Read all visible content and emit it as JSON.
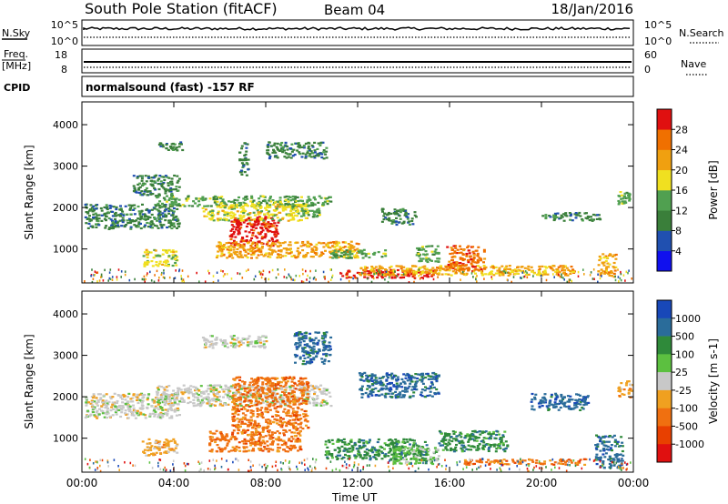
{
  "header": {
    "title": "South Pole Station (fitACF)",
    "beam": "Beam 04",
    "date": "18/Jan/2016"
  },
  "nsky_panel": {
    "left_label": "N.Sky",
    "right_label": "N.Search",
    "left_ticks": [
      "10^5",
      "10^0"
    ],
    "right_ticks": [
      "10^5",
      "10^0"
    ]
  },
  "freq_panel": {
    "left_label_1": "Freq.",
    "left_label_2": "[MHz]",
    "right_label": "Nave",
    "left_ticks": [
      "18",
      "8"
    ],
    "right_ticks": [
      "60",
      "0"
    ]
  },
  "cpid": {
    "label": "CPID",
    "text": "normalsound (fast) -157 RF"
  },
  "chart_data": [
    {
      "type": "heatmap",
      "quantity": "Power",
      "ylabel": "Slant Range [km]",
      "ylim": [
        180,
        4550
      ],
      "yticks": [
        1000,
        2000,
        3000,
        4000
      ],
      "xlim_hours": [
        0,
        24
      ],
      "colorbar": {
        "label": "Power [dB]",
        "ticks": [
          "4",
          "8",
          "12",
          "16",
          "20",
          "24",
          "28"
        ],
        "colors": [
          "#1010ee",
          "#2050b0",
          "#3a7f3a",
          "#50a050",
          "#f0e020",
          "#f0a010",
          "#f07000",
          "#e01010"
        ]
      },
      "regions": [
        {
          "t": [
            0.1,
            4.2
          ],
          "r": [
            1500,
            2100
          ],
          "level": 1
        },
        {
          "t": [
            2.2,
            4.2
          ],
          "r": [
            2300,
            2800
          ],
          "level": 1
        },
        {
          "t": [
            2.6,
            4.1
          ],
          "r": [
            600,
            1000
          ],
          "level": 3
        },
        {
          "t": [
            3.3,
            4.4
          ],
          "r": [
            3400,
            3600
          ],
          "level": 1
        },
        {
          "t": [
            3.2,
            10.8
          ],
          "r": [
            2050,
            2300
          ],
          "level": 2
        },
        {
          "t": [
            5.2,
            7.8
          ],
          "r": [
            1700,
            2100
          ],
          "level": 3
        },
        {
          "t": [
            6.4,
            8.5
          ],
          "r": [
            1100,
            1800
          ],
          "level": 6
        },
        {
          "t": [
            6.8,
            7.2
          ],
          "r": [
            2800,
            3600
          ],
          "level": 1
        },
        {
          "t": [
            7.6,
            9.8
          ],
          "r": [
            1700,
            2100
          ],
          "level": 3
        },
        {
          "t": [
            8.0,
            10.6
          ],
          "r": [
            3200,
            3600
          ],
          "level": 1
        },
        {
          "t": [
            5.8,
            12.0
          ],
          "r": [
            800,
            1200
          ],
          "level": 4
        },
        {
          "t": [
            9.5,
            10.3
          ],
          "r": [
            1800,
            2000
          ],
          "level": 2
        },
        {
          "t": [
            10.8,
            13.2
          ],
          "r": [
            800,
            1000
          ],
          "level": 2
        },
        {
          "t": [
            11.2,
            15.3
          ],
          "r": [
            320,
            520
          ],
          "level": 6
        },
        {
          "t": [
            12.0,
            21.5
          ],
          "r": [
            380,
            620
          ],
          "level": 4
        },
        {
          "t": [
            13.0,
            14.5
          ],
          "r": [
            1600,
            2000
          ],
          "level": 1
        },
        {
          "t": [
            14.5,
            15.5
          ],
          "r": [
            700,
            1100
          ],
          "level": 2
        },
        {
          "t": [
            15.8,
            17.5
          ],
          "r": [
            500,
            1100
          ],
          "level": 5
        },
        {
          "t": [
            17.5,
            20.2
          ],
          "r": [
            400,
            500
          ],
          "level": 3
        },
        {
          "t": [
            20.0,
            22.5
          ],
          "r": [
            1700,
            1900
          ],
          "level": 1
        },
        {
          "t": [
            22.4,
            23.2
          ],
          "r": [
            350,
            900
          ],
          "level": 4
        },
        {
          "t": [
            23.3,
            23.8
          ],
          "r": [
            2100,
            2400
          ],
          "level": 2
        }
      ]
    },
    {
      "type": "heatmap",
      "quantity": "Velocity",
      "ylabel": "Slant Range [km]",
      "ylim": [
        180,
        4550
      ],
      "yticks": [
        1000,
        2000,
        3000,
        4000
      ],
      "xlim_hours": [
        0,
        24
      ],
      "xticks": [
        "00:00",
        "04:00",
        "08:00",
        "12:00",
        "16:00",
        "20:00",
        "00:00"
      ],
      "xlabel": "Time UT",
      "colorbar": {
        "label": "Velocity [m s-1]",
        "ticks": [
          "1000",
          "500",
          "100",
          "25",
          "-25",
          "-100",
          "-500",
          "-1000"
        ],
        "colors": [
          "#1848b8",
          "#2a6c9a",
          "#2f8a3a",
          "#5cc040",
          "#c8c8c8",
          "#f0a020",
          "#f07010",
          "#e84000",
          "#e01010"
        ]
      },
      "regions": [
        {
          "t": [
            0.1,
            4.2
          ],
          "r": [
            1500,
            2100
          ],
          "level": 4
        },
        {
          "t": [
            2.6,
            4.1
          ],
          "r": [
            600,
            1000
          ],
          "level": 5
        },
        {
          "t": [
            3.2,
            10.8
          ],
          "r": [
            1800,
            2300
          ],
          "level": 4
        },
        {
          "t": [
            5.2,
            8.0
          ],
          "r": [
            3200,
            3500
          ],
          "level": 4
        },
        {
          "t": [
            5.5,
            9.5
          ],
          "r": [
            700,
            1200
          ],
          "level": 6
        },
        {
          "t": [
            6.5,
            9.8
          ],
          "r": [
            1200,
            2500
          ],
          "level": 6
        },
        {
          "t": [
            9.2,
            10.8
          ],
          "r": [
            2800,
            3600
          ],
          "level": 1
        },
        {
          "t": [
            10.5,
            15.0
          ],
          "r": [
            500,
            1000
          ],
          "level": 2
        },
        {
          "t": [
            12.0,
            15.5
          ],
          "r": [
            2000,
            2600
          ],
          "level": 1
        },
        {
          "t": [
            13.5,
            15.5
          ],
          "r": [
            400,
            800
          ],
          "level": 3
        },
        {
          "t": [
            15.5,
            18.5
          ],
          "r": [
            700,
            1200
          ],
          "level": 2
        },
        {
          "t": [
            16.5,
            22.0
          ],
          "r": [
            380,
            520
          ],
          "level": 6
        },
        {
          "t": [
            19.5,
            22.0
          ],
          "r": [
            1700,
            2100
          ],
          "level": 1
        },
        {
          "t": [
            22.3,
            23.5
          ],
          "r": [
            300,
            1100
          ],
          "level": 1
        },
        {
          "t": [
            23.3,
            23.9
          ],
          "r": [
            2000,
            2400
          ],
          "level": 5
        }
      ]
    }
  ]
}
